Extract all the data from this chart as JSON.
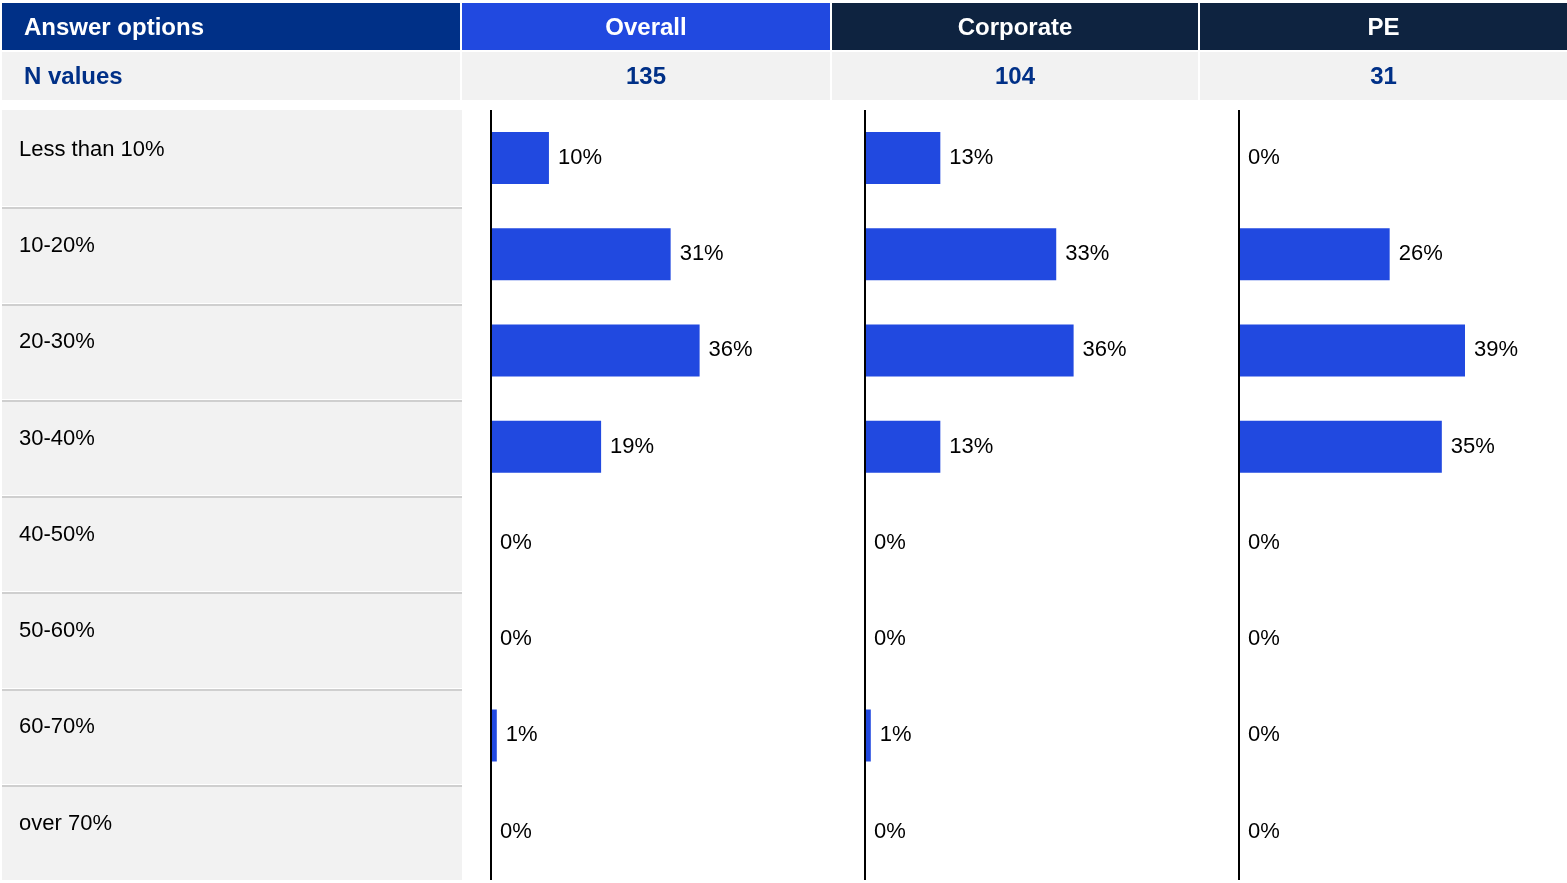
{
  "chart_data": [
    {
      "type": "bar",
      "orientation": "horizontal",
      "title": "Overall",
      "subtitle": "135",
      "ylabel": "Answer options",
      "annotations": [
        "N values"
      ],
      "categories": [
        "Less than 10%",
        "10-20%",
        "20-30%",
        "30-40%",
        "40-50%",
        "50-60%",
        "60-70%",
        "over 70%"
      ],
      "values": [
        10,
        31,
        36,
        19,
        0,
        0,
        1,
        0
      ],
      "value_labels": [
        "10%",
        "31%",
        "36%",
        "19%",
        "0%",
        "0%",
        "1%",
        "0%"
      ],
      "color": "#2149e0",
      "tick_labels": "y"
    },
    {
      "type": "bar",
      "orientation": "horizontal",
      "title": "Corporate",
      "subtitle": "104",
      "values": [
        13,
        33,
        36,
        13,
        0,
        0,
        1,
        0
      ],
      "value_labels": [
        "13%",
        "33%",
        "36%",
        "13%",
        "0%",
        "0%",
        "1%",
        "0%"
      ],
      "color": "#2149e0",
      "tick_labels": false
    },
    {
      "type": "bar",
      "orientation": "horizontal",
      "title": "PE",
      "subtitle": "31",
      "values": [
        0,
        26,
        39,
        35,
        0,
        0,
        0,
        0
      ],
      "value_labels": [
        "0%",
        "26%",
        "39%",
        "35%",
        "0%",
        "0%",
        "0%",
        "0%"
      ],
      "color": "#2149e0",
      "tick_labels": false
    }
  ]
}
